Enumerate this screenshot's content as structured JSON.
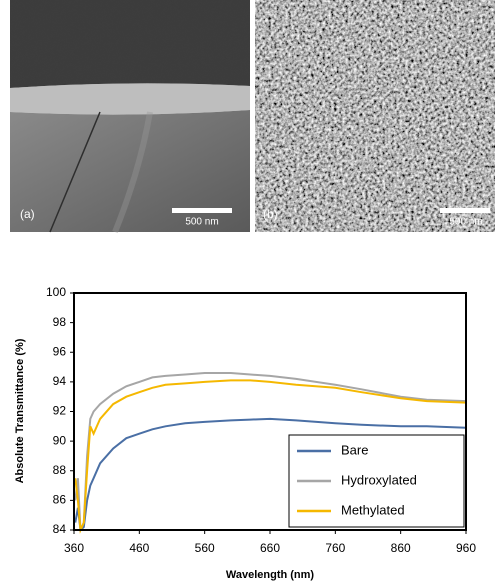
{
  "panels": [
    {
      "label": "(a)",
      "scale_bar": "500 nm"
    },
    {
      "label": "(b)",
      "scale_bar": "500 nm"
    }
  ],
  "chart_data": {
    "type": "line",
    "x_label": "Wavelength (nm)",
    "y_label": "Absolute Transmittance (%)",
    "x": [
      362,
      366,
      370,
      375,
      380,
      385,
      390,
      400,
      420,
      440,
      460,
      480,
      500,
      530,
      560,
      600,
      630,
      660,
      700,
      760,
      800,
      860,
      900,
      960
    ],
    "series": [
      {
        "name": "Bare",
        "color": "#4a6fa5",
        "values": [
          84.5,
          85.5,
          84,
          84.2,
          86,
          87,
          87.5,
          88.5,
          89.5,
          90.2,
          90.5,
          90.8,
          91.0,
          91.2,
          91.3,
          91.4,
          91.45,
          91.5,
          91.4,
          91.2,
          91.1,
          91.0,
          91.0,
          90.9
        ]
      },
      {
        "name": "Hydroxylated",
        "color": "#a6a6a6",
        "values": [
          86,
          87.5,
          84,
          84.5,
          89,
          91.5,
          92,
          92.5,
          93.2,
          93.7,
          94.0,
          94.3,
          94.4,
          94.5,
          94.6,
          94.6,
          94.5,
          94.4,
          94.2,
          93.8,
          93.5,
          93.0,
          92.8,
          92.7
        ]
      },
      {
        "name": "Methylated",
        "color": "#f5b800",
        "values": [
          87.5,
          86,
          84,
          84.5,
          88,
          91,
          90.5,
          91.5,
          92.5,
          93.0,
          93.3,
          93.6,
          93.8,
          93.9,
          94.0,
          94.1,
          94.1,
          94.0,
          93.8,
          93.6,
          93.3,
          92.9,
          92.7,
          92.6
        ]
      }
    ],
    "xlim": [
      360,
      960
    ],
    "ylim": [
      84,
      100
    ],
    "xticks": [
      360,
      460,
      560,
      660,
      760,
      860,
      960
    ],
    "yticks": [
      84,
      86,
      88,
      90,
      92,
      94,
      96,
      98,
      100
    ],
    "grid": false,
    "legend": "lower right"
  }
}
